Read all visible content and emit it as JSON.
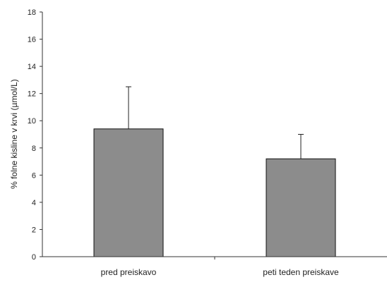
{
  "chart_data": {
    "type": "bar",
    "title": "",
    "xlabel": "",
    "ylabel": "% folne kisline v krvi (µmol/L)",
    "ylim": [
      0,
      18
    ],
    "yticks": [
      0,
      2,
      4,
      6,
      8,
      10,
      12,
      14,
      16,
      18
    ],
    "categories": [
      "pred  preiskavo",
      "peti teden  preiskave"
    ],
    "values": [
      9.4,
      7.2
    ],
    "error_upper": [
      12.5,
      9.0
    ],
    "grid": false,
    "legend": "none",
    "colors": {
      "bar_fill": "#8c8c8c",
      "bar_stroke": "#111111",
      "axis": "#333333",
      "error": "#222222"
    }
  }
}
